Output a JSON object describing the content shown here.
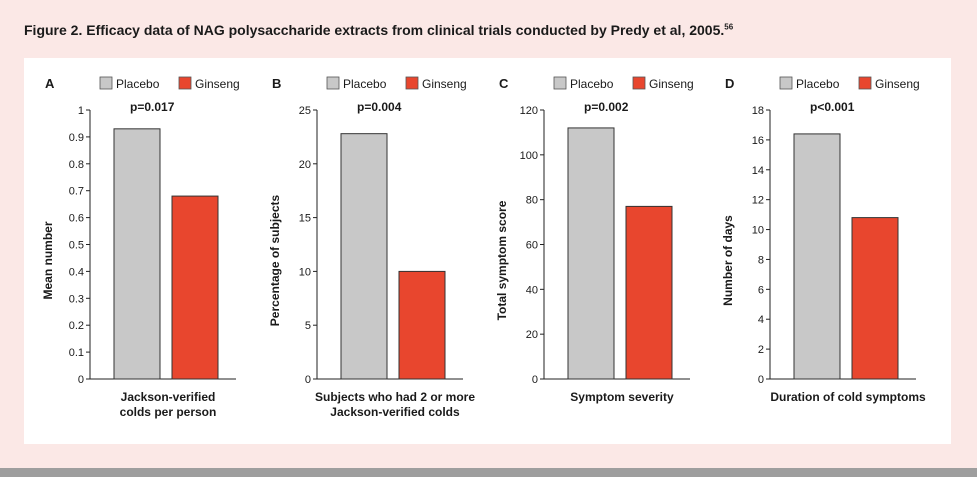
{
  "figure": {
    "title": "Figure 2. Efficacy data of NAG polysaccharide extracts from clinical trials conducted by Predy et al, 2005.",
    "title_ref": "56"
  },
  "colors": {
    "placebo": "#c8c8c8",
    "ginseng": "#e8462e"
  },
  "chart_data": [
    {
      "type": "bar",
      "panel_letter": "A",
      "legend": [
        "Placebo",
        "Ginseng"
      ],
      "annotation": "p=0.017",
      "categories": [
        "Placebo",
        "Ginseng"
      ],
      "values": [
        0.93,
        0.68
      ],
      "ylabel": "Mean number",
      "xlabel": [
        "Jackson-verified",
        "colds per person"
      ],
      "ylim": [
        0,
        1
      ],
      "yticks": [
        "0",
        "0.1",
        "0.2",
        "0.3",
        "0.4",
        "0.5",
        "0.6",
        "0.7",
        "0.8",
        "0.9",
        "1"
      ],
      "ytick_values": [
        0,
        0.1,
        0.2,
        0.3,
        0.4,
        0.5,
        0.6,
        0.7,
        0.8,
        0.9,
        1
      ]
    },
    {
      "type": "bar",
      "panel_letter": "B",
      "legend": [
        "Placebo",
        "Ginseng"
      ],
      "annotation": "p=0.004",
      "categories": [
        "Placebo",
        "Ginseng"
      ],
      "values": [
        22.8,
        10
      ],
      "ylabel": "Percentage of subjects",
      "xlabel": [
        "Subjects who had 2 or more",
        "Jackson-verified colds"
      ],
      "ylim": [
        0,
        25
      ],
      "yticks": [
        "0",
        "5",
        "10",
        "15",
        "20",
        "25"
      ],
      "ytick_values": [
        0,
        5,
        10,
        15,
        20,
        25
      ]
    },
    {
      "type": "bar",
      "panel_letter": "C",
      "legend": [
        "Placebo",
        "Ginseng"
      ],
      "annotation": "p=0.002",
      "categories": [
        "Placebo",
        "Ginseng"
      ],
      "values": [
        112,
        77
      ],
      "ylabel": "Total symptom score",
      "xlabel": [
        "Symptom severity"
      ],
      "ylim": [
        0,
        120
      ],
      "yticks": [
        "0",
        "20",
        "40",
        "60",
        "80",
        "100",
        "120"
      ],
      "ytick_values": [
        0,
        20,
        40,
        60,
        80,
        100,
        120
      ]
    },
    {
      "type": "bar",
      "panel_letter": "D",
      "legend": [
        "Placebo",
        "Ginseng"
      ],
      "annotation": "p<0.001",
      "categories": [
        "Placebo",
        "Ginseng"
      ],
      "values": [
        16.4,
        10.8
      ],
      "ylabel": "Number of days",
      "xlabel": [
        "Duration of cold symptoms"
      ],
      "ylim": [
        0,
        18
      ],
      "yticks": [
        "0",
        "2",
        "4",
        "6",
        "8",
        "10",
        "12",
        "14",
        "16",
        "18"
      ],
      "ytick_values": [
        0,
        2,
        4,
        6,
        8,
        10,
        12,
        14,
        16,
        18
      ]
    }
  ]
}
